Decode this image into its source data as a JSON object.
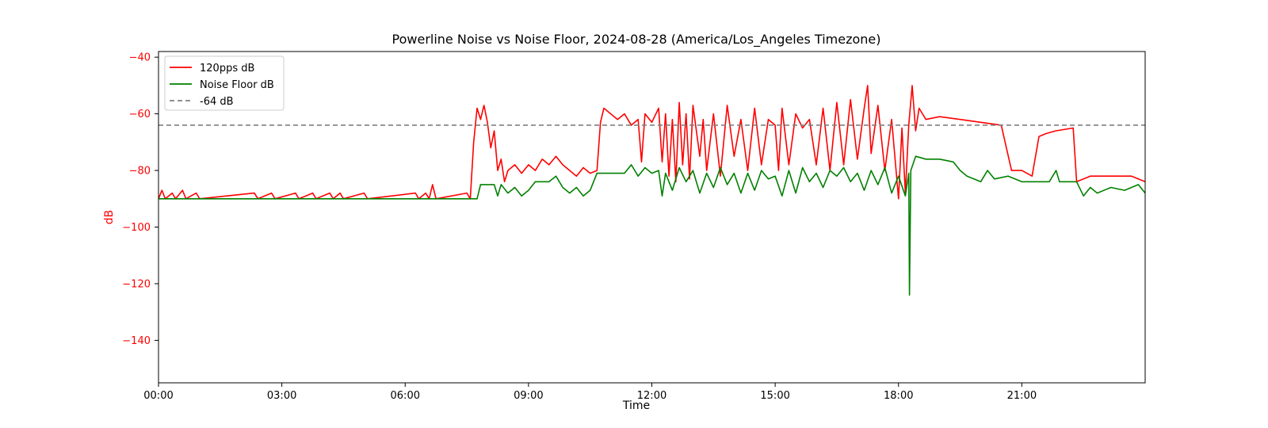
{
  "chart_data": {
    "type": "line",
    "title": "Powerline Noise vs Noise Floor, 2024-08-28 (America/Los_Angeles Timezone)",
    "xlabel": "Time",
    "ylabel": "dB",
    "xlim": [
      "00:00",
      "24:00"
    ],
    "ylim": [
      -155,
      -38
    ],
    "x_ticks": [
      "00:00",
      "03:00",
      "06:00",
      "09:00",
      "12:00",
      "15:00",
      "18:00",
      "21:00"
    ],
    "y_ticks": [
      -40,
      -60,
      -80,
      -100,
      -120,
      -140
    ],
    "grid": false,
    "legend_position": "top-left",
    "colors": {
      "series_120pps": "#ff0000",
      "noise_floor": "#008000",
      "threshold": "#808080",
      "ylabel": "#ff0000"
    },
    "series": [
      {
        "name": "120pps dB",
        "color": "#ff0000",
        "points": [
          [
            "00:00",
            -90
          ],
          [
            "00:05",
            -87
          ],
          [
            "00:10",
            -90
          ],
          [
            "00:20",
            -88
          ],
          [
            "00:25",
            -90
          ],
          [
            "00:35",
            -87
          ],
          [
            "00:40",
            -90
          ],
          [
            "00:55",
            -88
          ],
          [
            "01:00",
            -90
          ],
          [
            "02:20",
            -88
          ],
          [
            "02:25",
            -90
          ],
          [
            "02:45",
            -88
          ],
          [
            "02:50",
            -90
          ],
          [
            "03:20",
            -88
          ],
          [
            "03:25",
            -90
          ],
          [
            "03:45",
            -88
          ],
          [
            "03:50",
            -90
          ],
          [
            "04:10",
            -88
          ],
          [
            "04:15",
            -90
          ],
          [
            "04:25",
            -88
          ],
          [
            "04:30",
            -90
          ],
          [
            "05:00",
            -88
          ],
          [
            "05:05",
            -90
          ],
          [
            "06:15",
            -88
          ],
          [
            "06:20",
            -90
          ],
          [
            "06:30",
            -88
          ],
          [
            "06:35",
            -90
          ],
          [
            "06:40",
            -85
          ],
          [
            "06:45",
            -90
          ],
          [
            "07:30",
            -88
          ],
          [
            "07:35",
            -90
          ],
          [
            "07:40",
            -70
          ],
          [
            "07:45",
            -58
          ],
          [
            "07:50",
            -62
          ],
          [
            "07:55",
            -57
          ],
          [
            "08:00",
            -63
          ],
          [
            "08:05",
            -72
          ],
          [
            "08:10",
            -66
          ],
          [
            "08:15",
            -80
          ],
          [
            "08:20",
            -76
          ],
          [
            "08:25",
            -84
          ],
          [
            "08:30",
            -80
          ],
          [
            "08:40",
            -78
          ],
          [
            "08:50",
            -81
          ],
          [
            "09:00",
            -78
          ],
          [
            "09:10",
            -80
          ],
          [
            "09:20",
            -76
          ],
          [
            "09:30",
            -78
          ],
          [
            "09:40",
            -75
          ],
          [
            "09:50",
            -78
          ],
          [
            "10:00",
            -80
          ],
          [
            "10:10",
            -82
          ],
          [
            "10:20",
            -79
          ],
          [
            "10:30",
            -81
          ],
          [
            "10:40",
            -80
          ],
          [
            "10:45",
            -63
          ],
          [
            "10:50",
            -58
          ],
          [
            "11:00",
            -60
          ],
          [
            "11:10",
            -62
          ],
          [
            "11:20",
            -60
          ],
          [
            "11:30",
            -64
          ],
          [
            "11:40",
            -62
          ],
          [
            "11:45",
            -77
          ],
          [
            "11:50",
            -60
          ],
          [
            "12:00",
            -63
          ],
          [
            "12:10",
            -58
          ],
          [
            "12:15",
            -77
          ],
          [
            "12:20",
            -60
          ],
          [
            "12:25",
            -82
          ],
          [
            "12:30",
            -62
          ],
          [
            "12:35",
            -84
          ],
          [
            "12:40",
            -56
          ],
          [
            "12:45",
            -78
          ],
          [
            "12:50",
            -60
          ],
          [
            "12:55",
            -83
          ],
          [
            "13:00",
            -57
          ],
          [
            "13:10",
            -75
          ],
          [
            "13:15",
            -62
          ],
          [
            "13:20",
            -80
          ],
          [
            "13:30",
            -60
          ],
          [
            "13:40",
            -82
          ],
          [
            "13:50",
            -57
          ],
          [
            "14:00",
            -75
          ],
          [
            "14:10",
            -62
          ],
          [
            "14:20",
            -80
          ],
          [
            "14:30",
            -58
          ],
          [
            "14:40",
            -78
          ],
          [
            "14:50",
            -62
          ],
          [
            "15:00",
            -64
          ],
          [
            "15:05",
            -80
          ],
          [
            "15:10",
            -58
          ],
          [
            "15:20",
            -78
          ],
          [
            "15:30",
            -60
          ],
          [
            "15:40",
            -65
          ],
          [
            "15:50",
            -62
          ],
          [
            "16:00",
            -78
          ],
          [
            "16:10",
            -58
          ],
          [
            "16:20",
            -80
          ],
          [
            "16:30",
            -56
          ],
          [
            "16:40",
            -78
          ],
          [
            "16:50",
            -55
          ],
          [
            "17:00",
            -76
          ],
          [
            "17:10",
            -58
          ],
          [
            "17:15",
            -50
          ],
          [
            "17:20",
            -74
          ],
          [
            "17:30",
            -57
          ],
          [
            "17:40",
            -80
          ],
          [
            "17:50",
            -62
          ],
          [
            "18:00",
            -90
          ],
          [
            "18:05",
            -65
          ],
          [
            "18:10",
            -88
          ],
          [
            "18:15",
            -64
          ],
          [
            "18:20",
            -50
          ],
          [
            "18:25",
            -66
          ],
          [
            "18:30",
            -58
          ],
          [
            "18:40",
            -62
          ],
          [
            "19:00",
            -61
          ],
          [
            "19:30",
            -62
          ],
          [
            "20:00",
            -63
          ],
          [
            "20:30",
            -64
          ],
          [
            "20:45",
            -80
          ],
          [
            "21:00",
            -80
          ],
          [
            "21:15",
            -82
          ],
          [
            "21:25",
            -68
          ],
          [
            "21:35",
            -67
          ],
          [
            "21:50",
            -66
          ],
          [
            "22:15",
            -65
          ],
          [
            "22:20",
            -84
          ],
          [
            "22:30",
            -83
          ],
          [
            "22:40",
            -82
          ],
          [
            "23:00",
            -82
          ],
          [
            "23:20",
            -82
          ],
          [
            "23:40",
            -82
          ],
          [
            "24:00",
            -84
          ]
        ]
      },
      {
        "name": "Noise Floor dB",
        "color": "#008000",
        "points": [
          [
            "00:00",
            -90
          ],
          [
            "07:45",
            -90
          ],
          [
            "07:50",
            -85
          ],
          [
            "08:10",
            -85
          ],
          [
            "08:15",
            -89
          ],
          [
            "08:20",
            -85
          ],
          [
            "08:30",
            -88
          ],
          [
            "08:40",
            -86
          ],
          [
            "08:50",
            -89
          ],
          [
            "09:00",
            -87
          ],
          [
            "09:10",
            -84
          ],
          [
            "09:30",
            -84
          ],
          [
            "09:40",
            -82
          ],
          [
            "09:50",
            -86
          ],
          [
            "10:00",
            -88
          ],
          [
            "10:10",
            -86
          ],
          [
            "10:20",
            -89
          ],
          [
            "10:30",
            -87
          ],
          [
            "10:40",
            -81
          ],
          [
            "11:20",
            -81
          ],
          [
            "11:30",
            -78
          ],
          [
            "11:40",
            -82
          ],
          [
            "11:50",
            -79
          ],
          [
            "12:00",
            -81
          ],
          [
            "12:10",
            -80
          ],
          [
            "12:15",
            -89
          ],
          [
            "12:20",
            -81
          ],
          [
            "12:30",
            -87
          ],
          [
            "12:40",
            -79
          ],
          [
            "12:50",
            -84
          ],
          [
            "13:00",
            -80
          ],
          [
            "13:10",
            -88
          ],
          [
            "13:20",
            -81
          ],
          [
            "13:30",
            -86
          ],
          [
            "13:40",
            -79
          ],
          [
            "13:50",
            -85
          ],
          [
            "14:00",
            -81
          ],
          [
            "14:10",
            -88
          ],
          [
            "14:20",
            -81
          ],
          [
            "14:30",
            -87
          ],
          [
            "14:40",
            -80
          ],
          [
            "14:50",
            -83
          ],
          [
            "15:00",
            -82
          ],
          [
            "15:10",
            -89
          ],
          [
            "15:20",
            -80
          ],
          [
            "15:30",
            -88
          ],
          [
            "15:40",
            -79
          ],
          [
            "15:50",
            -84
          ],
          [
            "16:00",
            -81
          ],
          [
            "16:10",
            -86
          ],
          [
            "16:20",
            -80
          ],
          [
            "16:30",
            -82
          ],
          [
            "16:40",
            -79
          ],
          [
            "16:50",
            -84
          ],
          [
            "17:00",
            -81
          ],
          [
            "17:10",
            -87
          ],
          [
            "17:20",
            -80
          ],
          [
            "17:30",
            -85
          ],
          [
            "17:40",
            -79
          ],
          [
            "17:50",
            -88
          ],
          [
            "18:00",
            -82
          ],
          [
            "18:10",
            -89
          ],
          [
            "18:15",
            -81
          ],
          [
            "18:16",
            -124
          ],
          [
            "18:18",
            -80
          ],
          [
            "18:25",
            -75
          ],
          [
            "18:40",
            -76
          ],
          [
            "19:00",
            -76
          ],
          [
            "19:20",
            -77
          ],
          [
            "19:30",
            -80
          ],
          [
            "19:40",
            -82
          ],
          [
            "20:00",
            -84
          ],
          [
            "20:10",
            -80
          ],
          [
            "20:20",
            -83
          ],
          [
            "20:40",
            -82
          ],
          [
            "21:00",
            -84
          ],
          [
            "21:40",
            -84
          ],
          [
            "21:50",
            -80
          ],
          [
            "21:55",
            -84
          ],
          [
            "22:20",
            -84
          ],
          [
            "22:30",
            -89
          ],
          [
            "22:40",
            -86
          ],
          [
            "22:50",
            -88
          ],
          [
            "23:10",
            -86
          ],
          [
            "23:30",
            -87
          ],
          [
            "23:50",
            -85
          ],
          [
            "24:00",
            -88
          ]
        ]
      },
      {
        "name": "-64 dB",
        "color": "#808080",
        "style": "dashed",
        "points": [
          [
            "00:00",
            -64
          ],
          [
            "24:00",
            -64
          ]
        ]
      }
    ]
  }
}
